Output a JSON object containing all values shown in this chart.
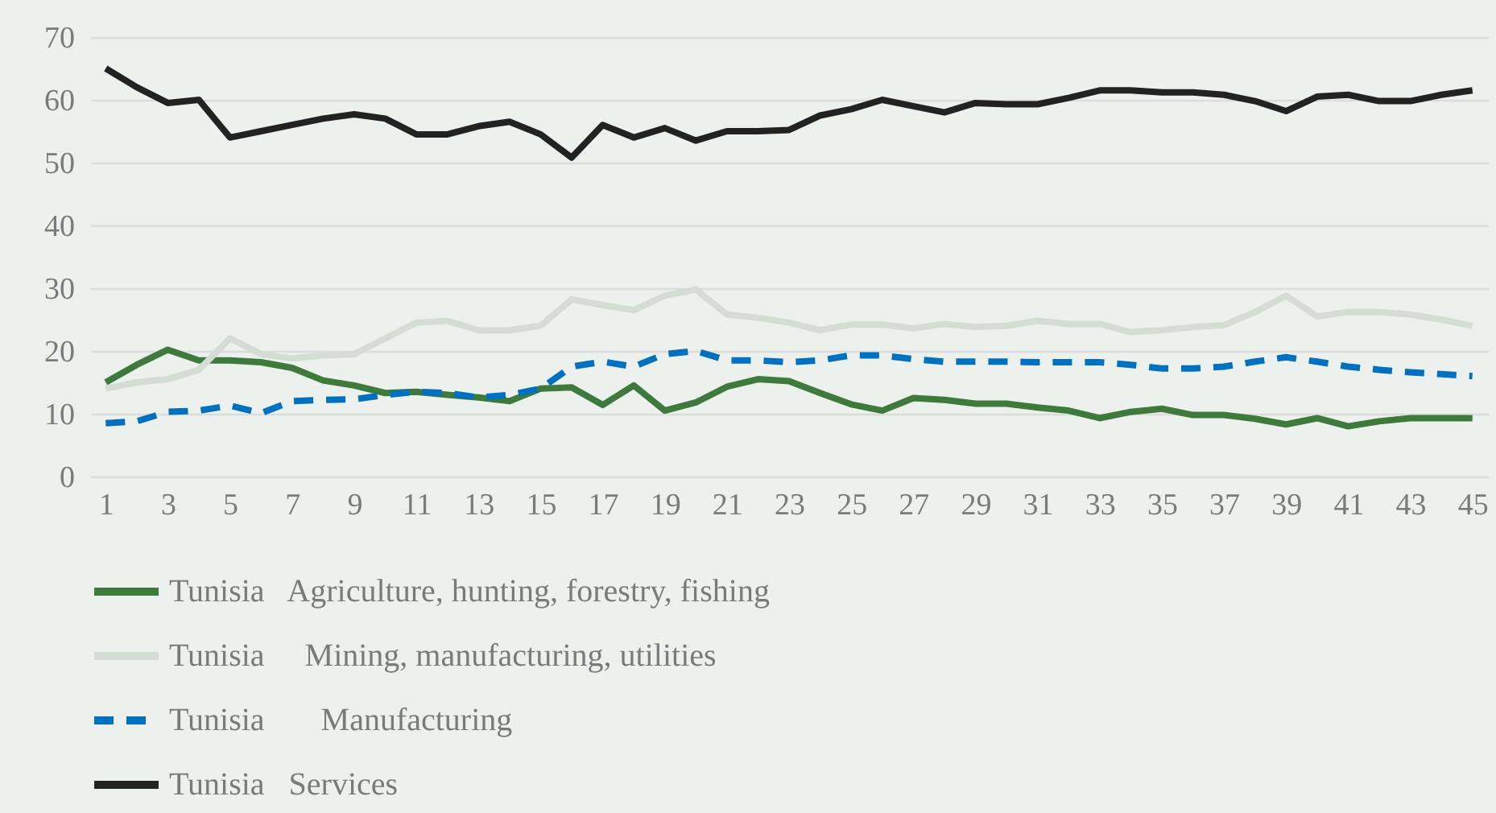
{
  "chart_data": {
    "type": "line",
    "x": [
      1,
      2,
      3,
      4,
      5,
      6,
      7,
      8,
      9,
      10,
      11,
      12,
      13,
      14,
      15,
      16,
      17,
      18,
      19,
      20,
      21,
      22,
      23,
      24,
      25,
      26,
      27,
      28,
      29,
      30,
      31,
      32,
      33,
      34,
      35,
      36,
      37,
      38,
      39,
      40,
      41,
      42,
      43,
      44,
      45
    ],
    "xlim": [
      0.5,
      45.5
    ],
    "xticks": [
      1,
      3,
      5,
      7,
      9,
      11,
      13,
      15,
      17,
      19,
      21,
      23,
      25,
      27,
      29,
      31,
      33,
      35,
      37,
      39,
      41,
      43,
      45
    ],
    "ylim": [
      0,
      70
    ],
    "yticks": [
      0,
      10,
      20,
      30,
      40,
      50,
      60,
      70
    ],
    "grid": "y",
    "legend": "bottom",
    "marker": "none",
    "series": [
      {
        "name": "Tunisia   Agriculture, hunting, forestry, fishing",
        "color": "#3e7a3c",
        "line_style": "solid",
        "values": [
          15,
          17.8,
          20.2,
          18.5,
          18.5,
          18.2,
          17.3,
          15.3,
          14.5,
          13.3,
          13.5,
          13,
          12.6,
          12,
          14,
          14.2,
          11.4,
          14.5,
          10.5,
          11.8,
          14.3,
          15.5,
          15.2,
          13.3,
          11.5,
          10.5,
          12.5,
          12.2,
          11.6,
          11.6,
          11,
          10.5,
          9.3,
          10.3,
          10.8,
          9.8,
          9.8,
          9.2,
          8.3,
          9.3,
          8,
          8.8,
          9.3,
          9.3,
          9.3
        ]
      },
      {
        "name": "Tunisia     Mining, manufacturing, utilities",
        "color": "#d4ddd4",
        "line_style": "solid",
        "values": [
          14,
          15,
          15.5,
          17,
          22,
          19.5,
          18.8,
          19.3,
          19.5,
          22,
          24.5,
          24.8,
          23.3,
          23.3,
          24,
          28.2,
          27.3,
          26.5,
          28.8,
          29.8,
          25.8,
          25.3,
          24.5,
          23.3,
          24.2,
          24.2,
          23.6,
          24.3,
          23.8,
          24,
          24.8,
          24.3,
          24.3,
          23,
          23.3,
          23.8,
          24.1,
          26.2,
          28.8,
          25.5,
          26.2,
          26.2,
          25.8,
          25,
          24
        ]
      },
      {
        "name": "Tunisia       Manufacturing",
        "color": "#0070c0",
        "line_style": "dashed",
        "values": [
          8.5,
          8.8,
          10.3,
          10.5,
          11.3,
          10.1,
          12,
          12.2,
          12.3,
          13,
          13.5,
          13.3,
          12.6,
          13,
          14,
          17.5,
          18.3,
          17.5,
          19.5,
          20,
          18.5,
          18.5,
          18.2,
          18.5,
          19.3,
          19.3,
          18.7,
          18.3,
          18.3,
          18.3,
          18.2,
          18.2,
          18.2,
          17.8,
          17.2,
          17.2,
          17.5,
          18.3,
          19,
          18.3,
          17.5,
          17,
          16.6,
          16.3,
          16
        ]
      },
      {
        "name": "Tunisia   Services",
        "color": "#222222",
        "line_style": "solid",
        "values": [
          65,
          62,
          59.5,
          60,
          54,
          55,
          56,
          57,
          57.7,
          57,
          54.5,
          54.5,
          55.8,
          56.5,
          54.5,
          50.8,
          56,
          54,
          55.5,
          53.5,
          55,
          55,
          55.2,
          57.5,
          58.5,
          60,
          59,
          58,
          59.5,
          59.3,
          59.3,
          60.3,
          61.5,
          61.5,
          61.2,
          61.2,
          60.8,
          59.8,
          58.2,
          60.5,
          60.8,
          59.8,
          59.8,
          60.8,
          61.5
        ]
      }
    ]
  }
}
